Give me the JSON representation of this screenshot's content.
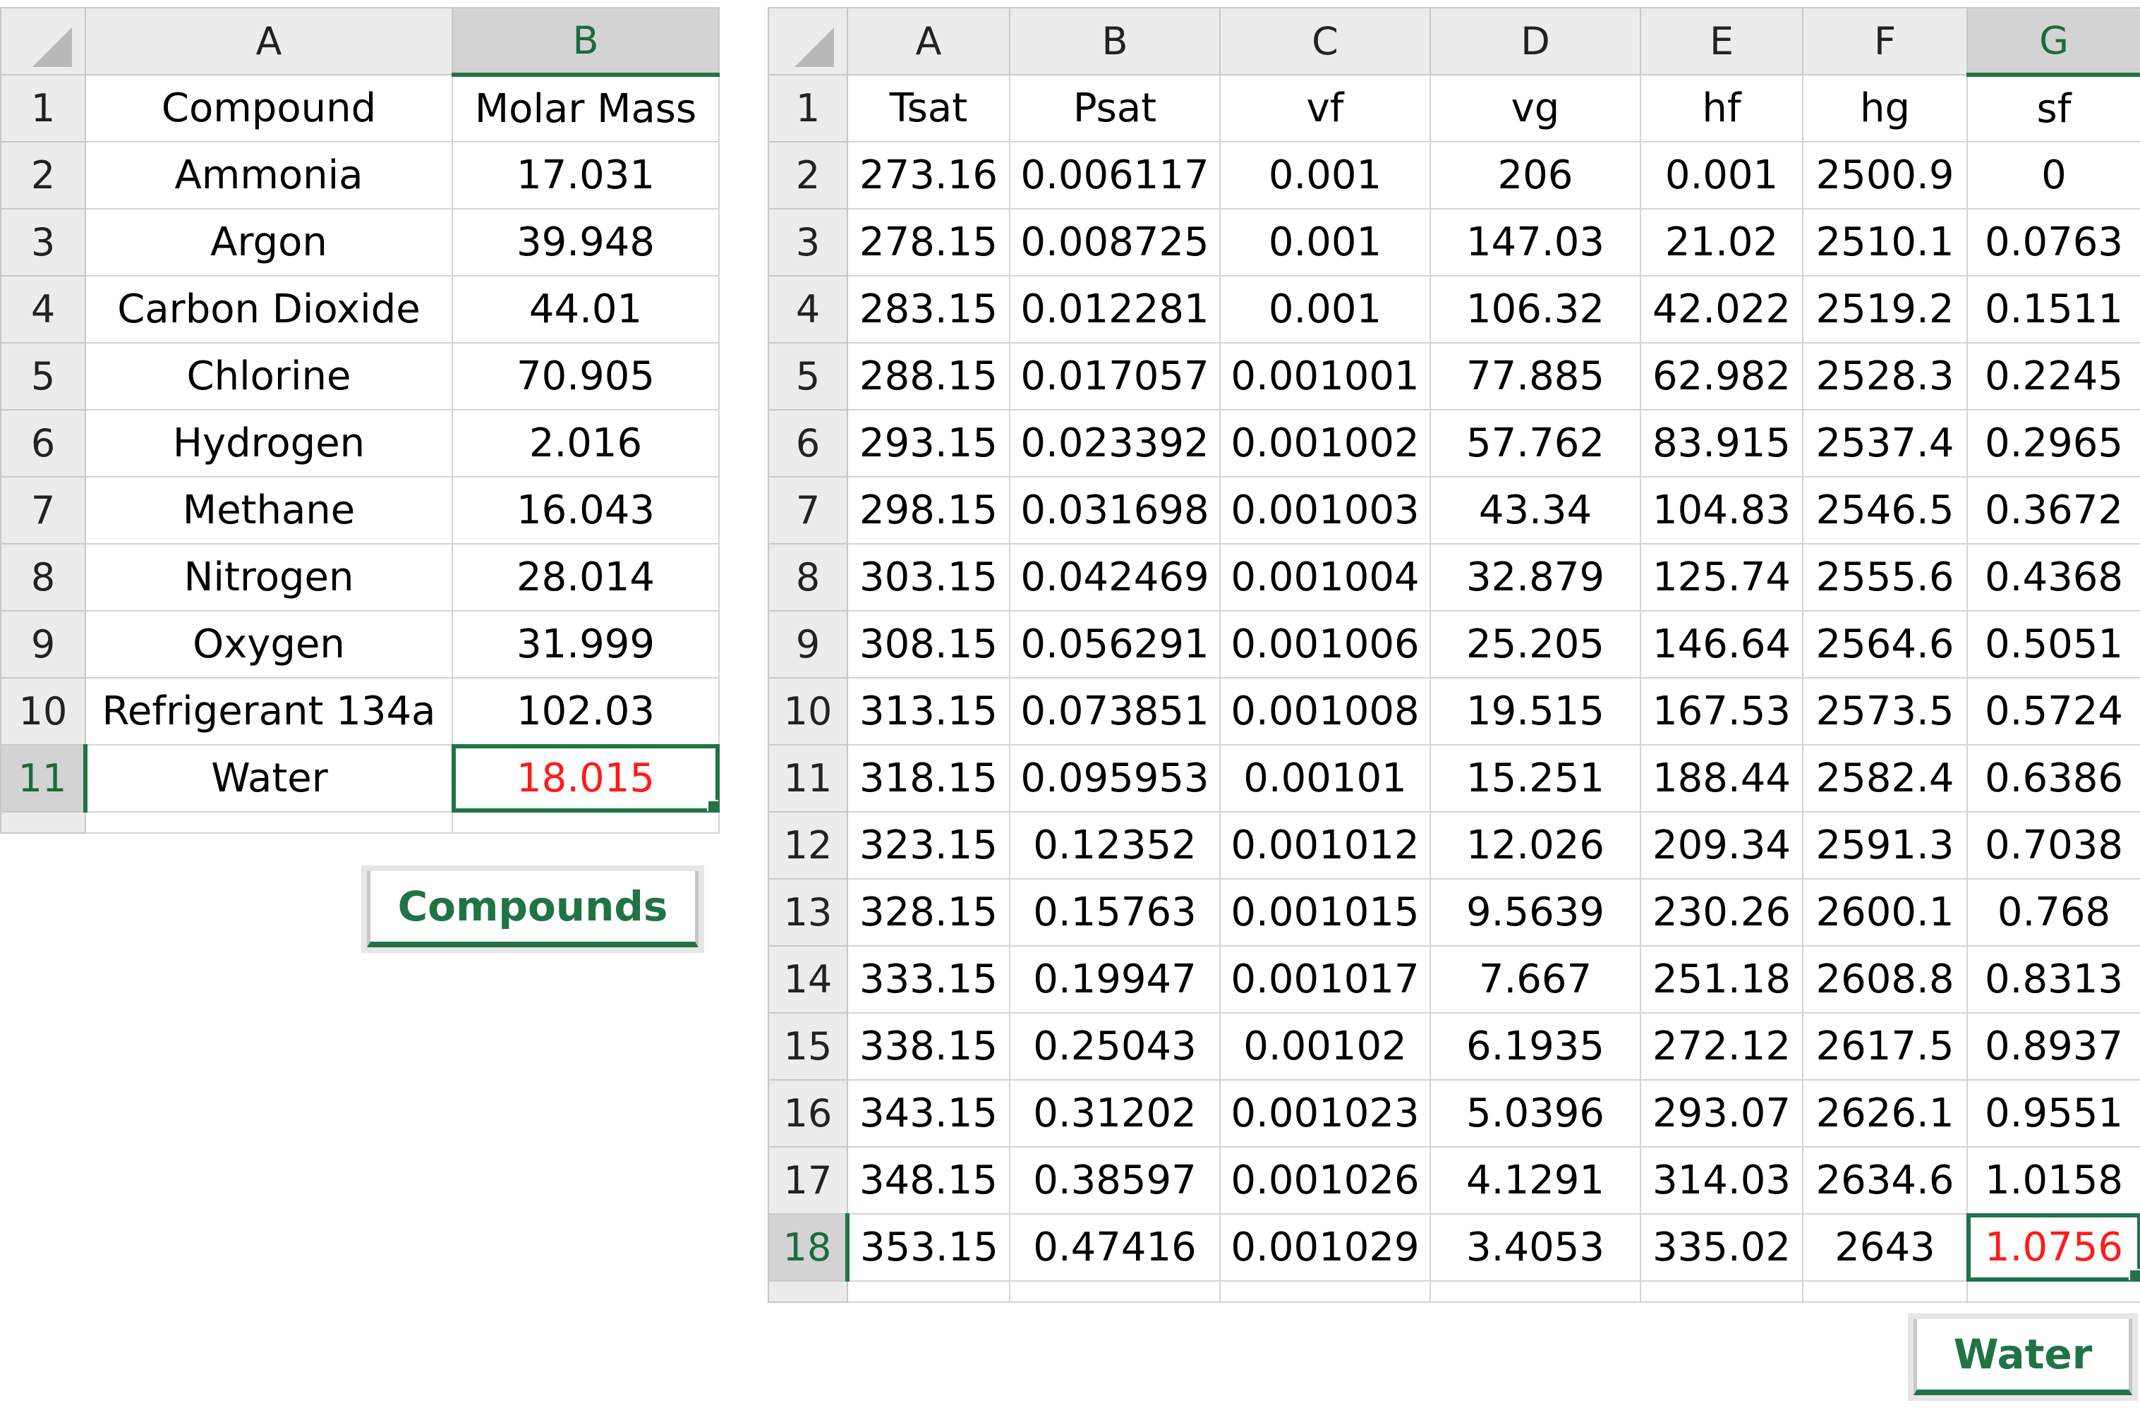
{
  "compounds_sheet": {
    "col_letters": [
      "A",
      "B"
    ],
    "row_numbers": [
      "1",
      "2",
      "3",
      "4",
      "5",
      "6",
      "7",
      "8",
      "9",
      "10",
      "11"
    ],
    "header": [
      "Compound",
      "Molar Mass"
    ],
    "rows": [
      [
        "Ammonia",
        "17.031"
      ],
      [
        "Argon",
        "39.948"
      ],
      [
        "Carbon Dioxide",
        "44.01"
      ],
      [
        "Chlorine",
        "70.905"
      ],
      [
        "Hydrogen",
        "2.016"
      ],
      [
        "Methane",
        "16.043"
      ],
      [
        "Nitrogen",
        "28.014"
      ],
      [
        "Oxygen",
        "31.999"
      ],
      [
        "Refrigerant 134a",
        "102.03"
      ],
      [
        "Water",
        "18.015"
      ]
    ],
    "selected_cell": "B11",
    "tab_label": "Compounds"
  },
  "water_sheet": {
    "col_letters": [
      "A",
      "B",
      "C",
      "D",
      "E",
      "F",
      "G"
    ],
    "row_numbers": [
      "1",
      "2",
      "3",
      "4",
      "5",
      "6",
      "7",
      "8",
      "9",
      "10",
      "11",
      "12",
      "13",
      "14",
      "15",
      "16",
      "17",
      "18"
    ],
    "header": [
      "Tsat",
      "Psat",
      "vf",
      "vg",
      "hf",
      "hg",
      "sf"
    ],
    "rows": [
      [
        "273.16",
        "0.006117",
        "0.001",
        "206",
        "0.001",
        "2500.9",
        "0"
      ],
      [
        "278.15",
        "0.008725",
        "0.001",
        "147.03",
        "21.02",
        "2510.1",
        "0.0763"
      ],
      [
        "283.15",
        "0.012281",
        "0.001",
        "106.32",
        "42.022",
        "2519.2",
        "0.1511"
      ],
      [
        "288.15",
        "0.017057",
        "0.001001",
        "77.885",
        "62.982",
        "2528.3",
        "0.2245"
      ],
      [
        "293.15",
        "0.023392",
        "0.001002",
        "57.762",
        "83.915",
        "2537.4",
        "0.2965"
      ],
      [
        "298.15",
        "0.031698",
        "0.001003",
        "43.34",
        "104.83",
        "2546.5",
        "0.3672"
      ],
      [
        "303.15",
        "0.042469",
        "0.001004",
        "32.879",
        "125.74",
        "2555.6",
        "0.4368"
      ],
      [
        "308.15",
        "0.056291",
        "0.001006",
        "25.205",
        "146.64",
        "2564.6",
        "0.5051"
      ],
      [
        "313.15",
        "0.073851",
        "0.001008",
        "19.515",
        "167.53",
        "2573.5",
        "0.5724"
      ],
      [
        "318.15",
        "0.095953",
        "0.00101",
        "15.251",
        "188.44",
        "2582.4",
        "0.6386"
      ],
      [
        "323.15",
        "0.12352",
        "0.001012",
        "12.026",
        "209.34",
        "2591.3",
        "0.7038"
      ],
      [
        "328.15",
        "0.15763",
        "0.001015",
        "9.5639",
        "230.26",
        "2600.1",
        "0.768"
      ],
      [
        "333.15",
        "0.19947",
        "0.001017",
        "7.667",
        "251.18",
        "2608.8",
        "0.8313"
      ],
      [
        "338.15",
        "0.25043",
        "0.00102",
        "6.1935",
        "272.12",
        "2617.5",
        "0.8937"
      ],
      [
        "343.15",
        "0.31202",
        "0.001023",
        "5.0396",
        "293.07",
        "2626.1",
        "0.9551"
      ],
      [
        "348.15",
        "0.38597",
        "0.001026",
        "4.1291",
        "314.03",
        "2634.6",
        "1.0158"
      ],
      [
        "353.15",
        "0.47416",
        "0.001029",
        "3.4053",
        "335.02",
        "2643",
        "1.0756"
      ]
    ],
    "selected_cell": "G18",
    "tab_label": "Water"
  },
  "colors": {
    "accent": "#217346",
    "selected_text": "#ff1a1a",
    "header_bg": "#ececec",
    "gridline": "#d4d4d4"
  }
}
